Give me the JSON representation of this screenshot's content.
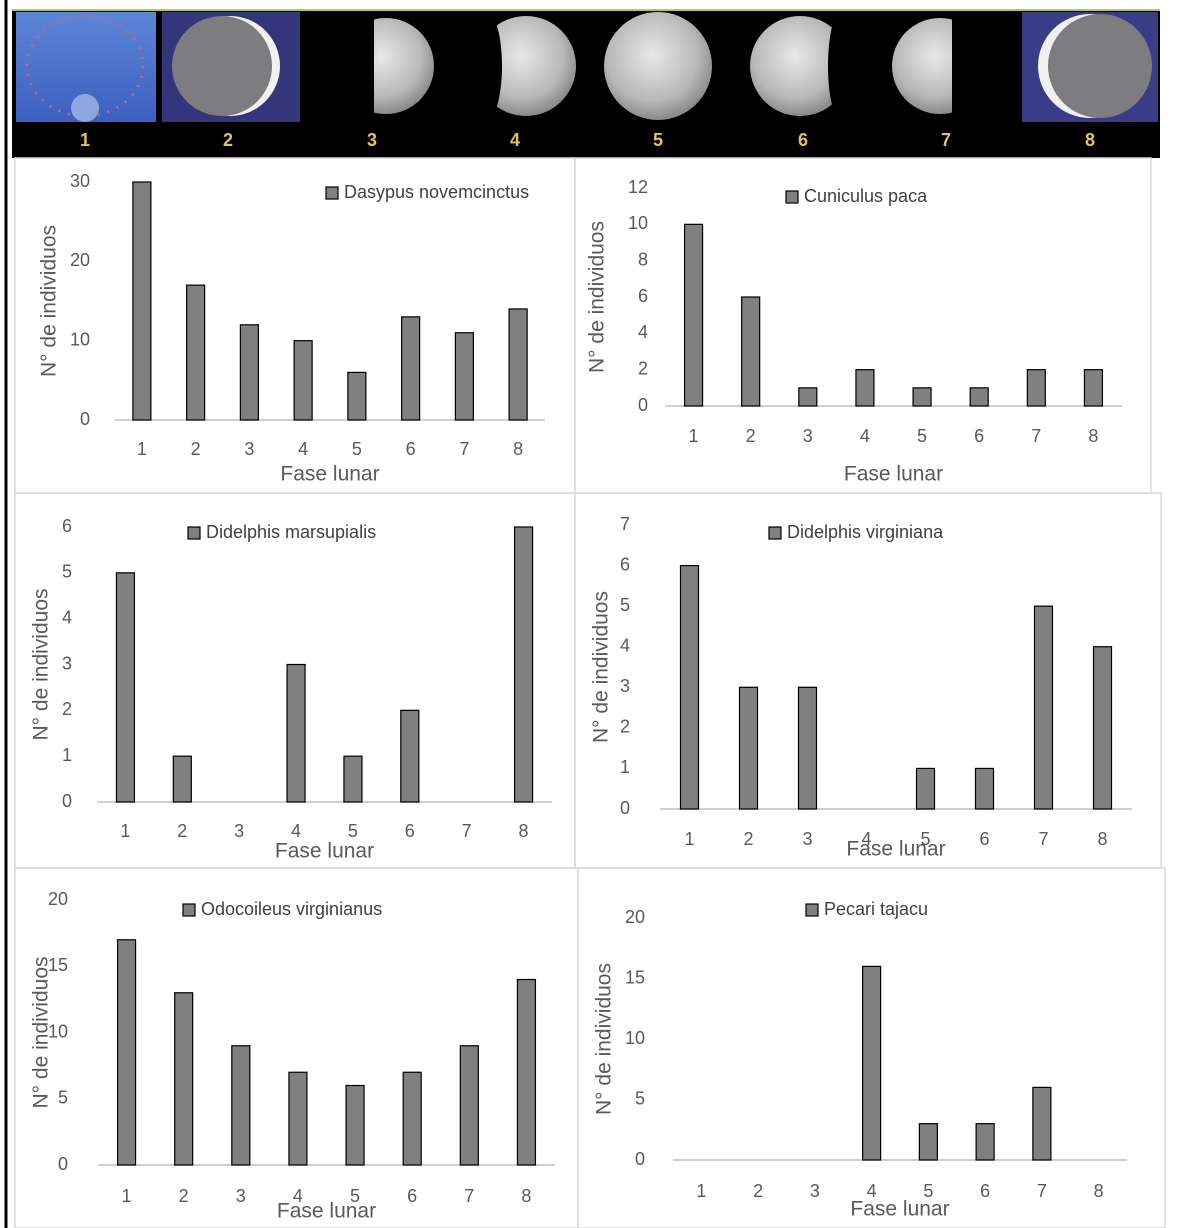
{
  "phase_labels": [
    "1",
    "2",
    "3",
    "4",
    "5",
    "6",
    "7",
    "8"
  ],
  "chart_data": [
    {
      "type": "bar",
      "categories": [
        "1",
        "2",
        "3",
        "4",
        "5",
        "6",
        "7",
        "8"
      ],
      "x_label": "Fase lunar",
      "y_label": "N° de individuos",
      "series": [
        {
          "name": "Dasypus novemcinctus",
          "color": "#808080",
          "values": [
            30,
            17,
            12,
            10,
            6,
            13,
            11,
            14
          ]
        }
      ],
      "ylim": [
        0,
        30
      ],
      "yticks": [
        0,
        10,
        20,
        30
      ]
    },
    {
      "type": "bar",
      "categories": [
        "1",
        "2",
        "3",
        "4",
        "5",
        "6",
        "7",
        "8"
      ],
      "x_label": "Fase lunar",
      "y_label": "N° de individuos",
      "series": [
        {
          "name": "Cuniculus paca",
          "color": "#808080",
          "values": [
            10,
            6,
            1,
            2,
            1,
            1,
            2,
            2
          ]
        }
      ],
      "ylim": [
        0,
        12
      ],
      "yticks": [
        0,
        2,
        4,
        6,
        8,
        10,
        12
      ]
    },
    {
      "type": "bar",
      "categories": [
        "1",
        "2",
        "3",
        "4",
        "5",
        "6",
        "7",
        "8"
      ],
      "x_label": "Fase lunar",
      "y_label": "N° de individuos",
      "series": [
        {
          "name": "Didelphis marsupialis",
          "color": "#808080",
          "values": [
            5,
            1,
            0,
            3,
            1,
            2,
            0,
            6
          ]
        }
      ],
      "ylim": [
        0,
        6
      ],
      "yticks": [
        0,
        1,
        2,
        3,
        4,
        5,
        6
      ]
    },
    {
      "type": "bar",
      "categories": [
        "1",
        "2",
        "3",
        "4",
        "5",
        "6",
        "7",
        "8"
      ],
      "x_label": "Fase lunar",
      "y_label": "N° de individuos",
      "series": [
        {
          "name": "Didelphis virginiana",
          "color": "#808080",
          "values": [
            6,
            3,
            3,
            0,
            1,
            1,
            5,
            4
          ]
        }
      ],
      "ylim": [
        0,
        7
      ],
      "yticks": [
        0,
        1,
        2,
        3,
        4,
        5,
        6,
        7
      ]
    },
    {
      "type": "bar",
      "categories": [
        "1",
        "2",
        "3",
        "4",
        "5",
        "6",
        "7",
        "8"
      ],
      "x_label": "Fase lunar",
      "y_label": "N° de individuos",
      "series": [
        {
          "name": "Odocoileus virginianus",
          "color": "#808080",
          "values": [
            17,
            13,
            9,
            7,
            6,
            7,
            9,
            14
          ]
        }
      ],
      "ylim": [
        0,
        20
      ],
      "yticks": [
        0,
        5,
        10,
        15,
        20
      ]
    },
    {
      "type": "bar",
      "categories": [
        "1",
        "2",
        "3",
        "4",
        "5",
        "6",
        "7",
        "8"
      ],
      "x_label": "Fase lunar",
      "y_label": "N° de individuos",
      "series": [
        {
          "name": "Pecari tajacu",
          "color": "#808080",
          "values": [
            0,
            0,
            0,
            16,
            3,
            3,
            6,
            0
          ]
        }
      ],
      "ylim": [
        0,
        20
      ],
      "yticks": [
        0,
        5,
        10,
        15,
        20
      ]
    }
  ]
}
